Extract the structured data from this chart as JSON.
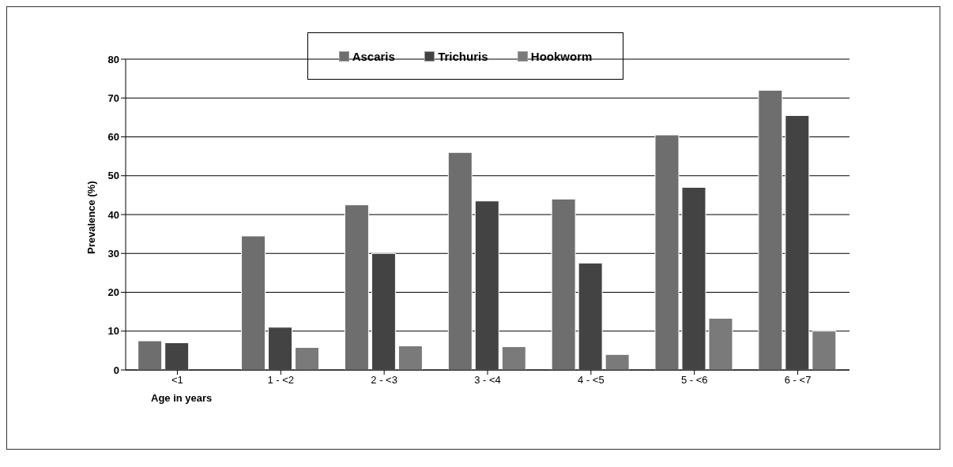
{
  "chart_data": {
    "type": "bar",
    "xlabel": "Age in years",
    "ylabel": "Prevalence (%)",
    "categories": [
      "<1",
      "1 - <2",
      "2 - <3",
      "3 - <4",
      "4 - <5",
      "5 - <6",
      "6 - <7"
    ],
    "series": [
      {
        "name": "Ascaris",
        "color": "#6e6e6e",
        "values": [
          7.5,
          34.5,
          42.5,
          56,
          44,
          60.5,
          72
        ]
      },
      {
        "name": "Trichuris",
        "color": "#434343",
        "values": [
          7,
          11,
          30,
          43.5,
          27.5,
          47,
          65.5
        ]
      },
      {
        "name": "Hookworm",
        "color": "#7a7a7a",
        "values": [
          0,
          5.8,
          6.2,
          6,
          4,
          13.3,
          10
        ]
      }
    ],
    "ylim": [
      0,
      80
    ],
    "yticks": [
      0,
      10,
      20,
      30,
      40,
      50,
      60,
      70,
      80
    ],
    "grid": "y",
    "legend": "top"
  }
}
